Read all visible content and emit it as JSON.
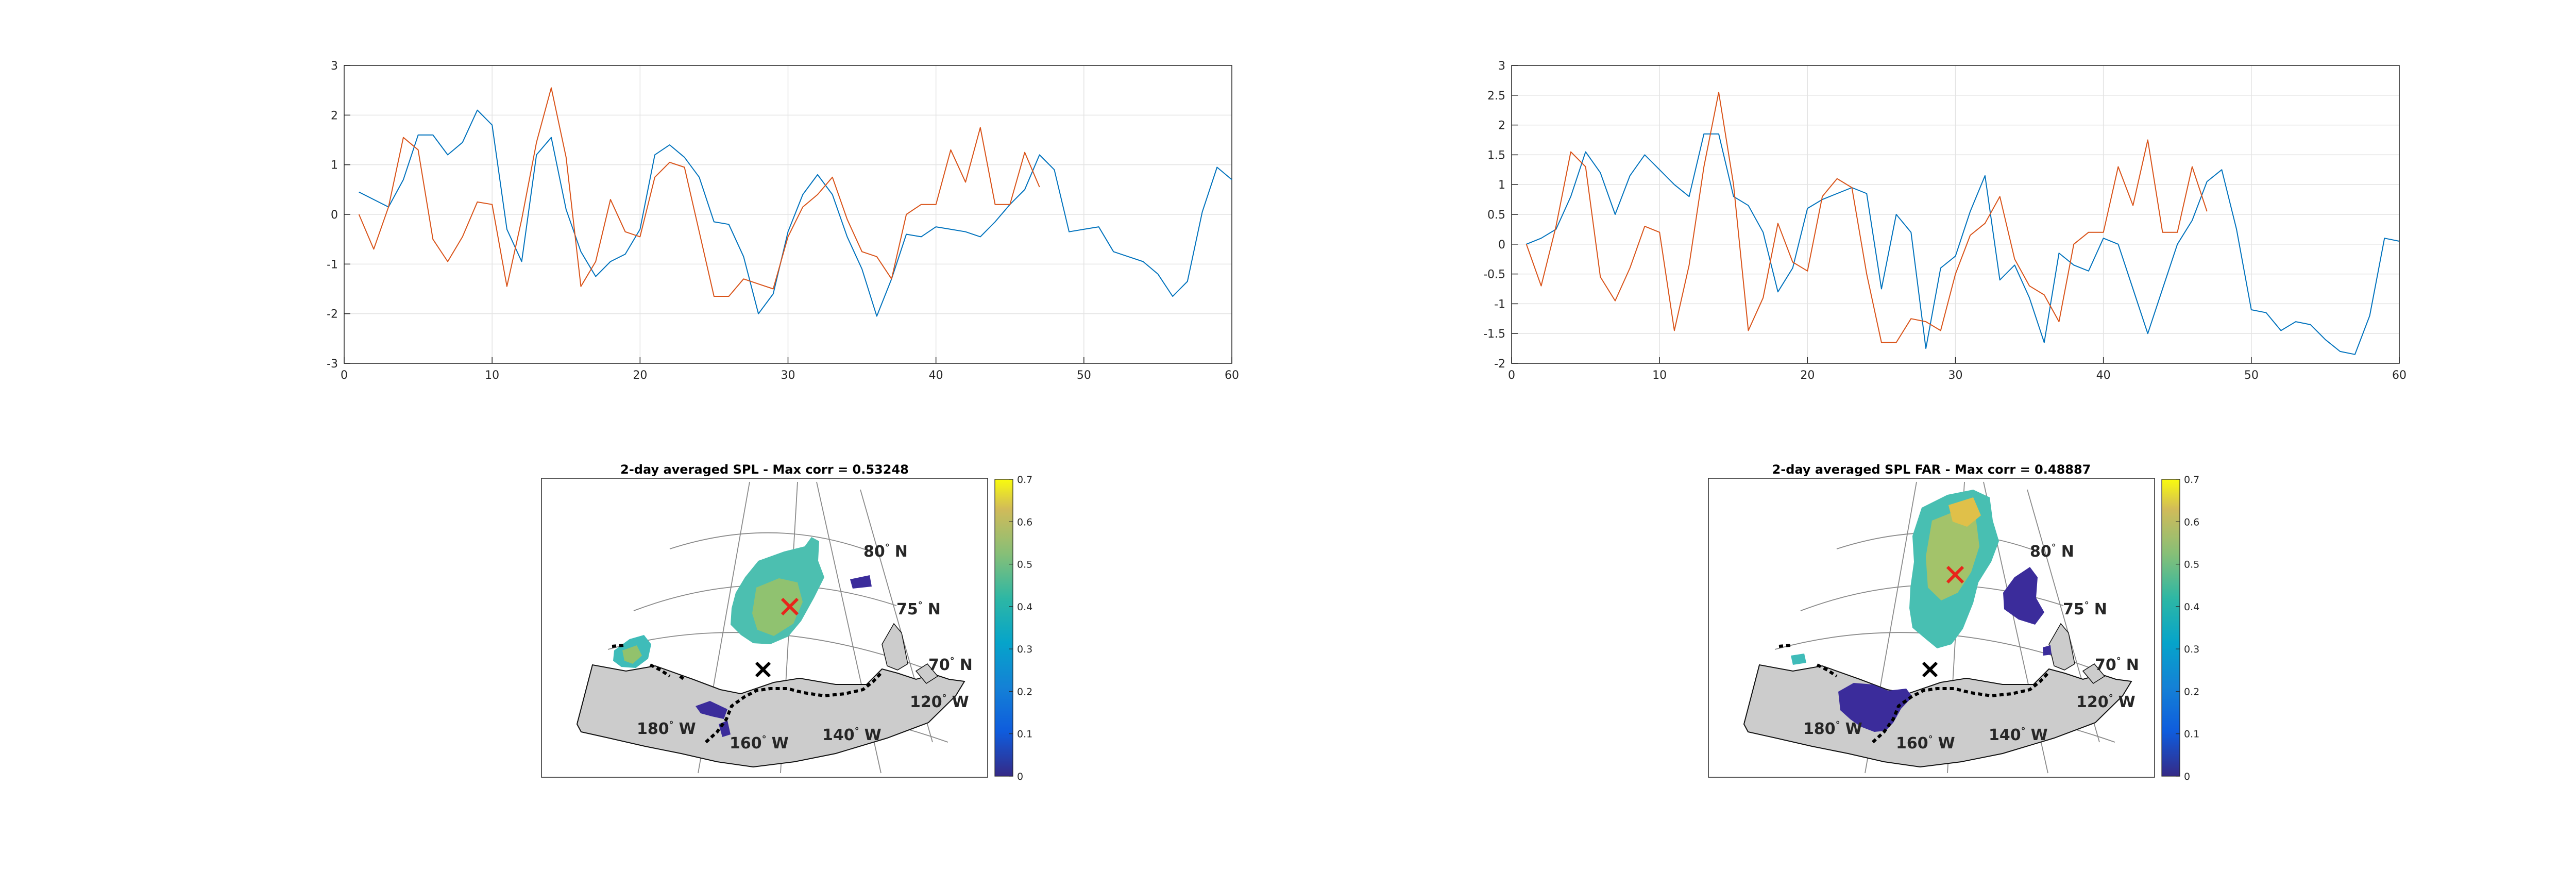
{
  "chart_data": [
    {
      "type": "line",
      "xlim": [
        0,
        60
      ],
      "ylim": [
        -3,
        3
      ],
      "xticks": [
        0,
        10,
        20,
        30,
        40,
        50,
        60
      ],
      "yticks": [
        -3,
        -2,
        -1,
        0,
        1,
        2,
        3
      ],
      "xtick_labels": [
        "0",
        "10",
        "20",
        "30",
        "40",
        "50",
        "60"
      ],
      "ytick_labels": [
        "-3",
        "-2",
        "-1",
        "0",
        "1",
        "2",
        "3"
      ],
      "grid": true,
      "series": [
        {
          "color": "#0072BD",
          "x": [
            1,
            2,
            3,
            4,
            5,
            6,
            7,
            8,
            9,
            10,
            11,
            12,
            13,
            14,
            15,
            16,
            17,
            18,
            19,
            20,
            21,
            22,
            23,
            24,
            25,
            26,
            27,
            28,
            29,
            30,
            31,
            32,
            33,
            34,
            35,
            36,
            37,
            38,
            39,
            40,
            41,
            42,
            43,
            44,
            45,
            46,
            47,
            48,
            49,
            50,
            51,
            52,
            53,
            54,
            55,
            56,
            57,
            58,
            59,
            60
          ],
          "y": [
            0.45,
            0.3,
            0.15,
            0.7,
            1.6,
            1.6,
            1.2,
            1.45,
            2.1,
            1.8,
            -0.3,
            -0.95,
            1.2,
            1.55,
            0.1,
            -0.75,
            -1.25,
            -0.95,
            -0.8,
            -0.3,
            1.2,
            1.4,
            1.15,
            0.75,
            -0.15,
            -0.2,
            -0.85,
            -2.0,
            -1.6,
            -0.35,
            0.4,
            0.8,
            0.4,
            -0.45,
            -1.1,
            -2.05,
            -1.3,
            -0.4,
            -0.45,
            -0.25,
            -0.3,
            -0.35,
            -0.45,
            -0.15,
            0.2,
            0.5,
            1.2,
            0.9,
            -0.35,
            -0.3,
            -0.25,
            -0.75,
            -0.85,
            -0.95,
            -1.2,
            -1.65,
            -1.35,
            0.05,
            0.95,
            0.7
          ]
        },
        {
          "color": "#D95319",
          "x": [
            1,
            2,
            3,
            4,
            5,
            6,
            7,
            8,
            9,
            10,
            11,
            12,
            13,
            14,
            15,
            16,
            17,
            18,
            19,
            20,
            21,
            22,
            23,
            24,
            25,
            26,
            27,
            28,
            29,
            30,
            31,
            32,
            33,
            34,
            35,
            36,
            37,
            38,
            39,
            40,
            41,
            42,
            43,
            44,
            45,
            46,
            47
          ],
          "y": [
            0.0,
            -0.7,
            0.15,
            1.55,
            1.3,
            -0.5,
            -0.95,
            -0.45,
            0.25,
            0.2,
            -1.45,
            -0.1,
            1.45,
            2.55,
            1.15,
            -1.45,
            -0.95,
            0.3,
            -0.35,
            -0.45,
            0.75,
            1.05,
            0.95,
            -0.35,
            -1.65,
            -1.65,
            -1.3,
            -1.4,
            -1.5,
            -0.45,
            0.15,
            0.4,
            0.75,
            -0.1,
            -0.75,
            -0.85,
            -1.3,
            0.0,
            0.2,
            0.2,
            1.3,
            0.65,
            1.75,
            0.2,
            0.2,
            1.25,
            0.55
          ]
        }
      ]
    },
    {
      "type": "line",
      "xlim": [
        0,
        60
      ],
      "ylim": [
        -2,
        3
      ],
      "xticks": [
        0,
        10,
        20,
        30,
        40,
        50,
        60
      ],
      "yticks": [
        -2,
        -1.5,
        -1,
        -0.5,
        0,
        0.5,
        1,
        1.5,
        2,
        2.5,
        3
      ],
      "xtick_labels": [
        "0",
        "10",
        "20",
        "30",
        "40",
        "50",
        "60"
      ],
      "ytick_labels": [
        "-2",
        "-1.5",
        "-1",
        "-0.5",
        "0",
        "0.5",
        "1",
        "1.5",
        "2",
        "2.5",
        "3"
      ],
      "grid": true,
      "series": [
        {
          "color": "#0072BD",
          "x": [
            1,
            2,
            3,
            4,
            5,
            6,
            7,
            8,
            9,
            10,
            11,
            12,
            13,
            14,
            15,
            16,
            17,
            18,
            19,
            20,
            21,
            22,
            23,
            24,
            25,
            26,
            27,
            28,
            29,
            30,
            31,
            32,
            33,
            34,
            35,
            36,
            37,
            38,
            39,
            40,
            41,
            42,
            43,
            44,
            45,
            46,
            47,
            48,
            49,
            50,
            51,
            52,
            53,
            54,
            55,
            56,
            57,
            58,
            59,
            60
          ],
          "y": [
            0.0,
            0.1,
            0.25,
            0.8,
            1.55,
            1.2,
            0.5,
            1.15,
            1.5,
            1.25,
            1.0,
            0.8,
            1.85,
            1.85,
            0.8,
            0.65,
            0.2,
            -0.8,
            -0.4,
            0.6,
            0.75,
            0.85,
            0.95,
            0.85,
            -0.75,
            0.5,
            0.2,
            -1.75,
            -0.4,
            -0.2,
            0.55,
            1.15,
            -0.6,
            -0.35,
            -0.9,
            -1.65,
            -0.15,
            -0.35,
            -0.45,
            0.1,
            0.0,
            -0.75,
            -1.5,
            -0.75,
            0.0,
            0.4,
            1.05,
            1.25,
            0.25,
            -1.1,
            -1.15,
            -1.45,
            -1.3,
            -1.35,
            -1.6,
            -1.8,
            -1.85,
            -1.2,
            0.1,
            0.05
          ]
        },
        {
          "color": "#D95319",
          "x": [
            1,
            2,
            3,
            4,
            5,
            6,
            7,
            8,
            9,
            10,
            11,
            12,
            13,
            14,
            15,
            16,
            17,
            18,
            19,
            20,
            21,
            22,
            23,
            24,
            25,
            26,
            27,
            28,
            29,
            30,
            31,
            32,
            33,
            34,
            35,
            36,
            37,
            38,
            39,
            40,
            41,
            42,
            43,
            44,
            45,
            46,
            47
          ],
          "y": [
            0.0,
            -0.7,
            0.3,
            1.55,
            1.3,
            -0.55,
            -0.95,
            -0.4,
            0.3,
            0.2,
            -1.45,
            -0.35,
            1.3,
            2.55,
            1.0,
            -1.45,
            -0.9,
            0.35,
            -0.3,
            -0.45,
            0.8,
            1.1,
            0.95,
            -0.5,
            -1.65,
            -1.65,
            -1.25,
            -1.3,
            -1.45,
            -0.5,
            0.15,
            0.35,
            0.8,
            -0.25,
            -0.7,
            -0.85,
            -1.3,
            0.0,
            0.2,
            0.2,
            1.3,
            0.65,
            1.75,
            0.2,
            0.2,
            1.3,
            0.55
          ]
        }
      ]
    },
    {
      "type": "heatmap",
      "title": "2-day averaged SPL - Max corr = 0.53248",
      "colorbar": {
        "min": 0,
        "max": 0.7,
        "ticks": [
          "0",
          "0.1",
          "0.2",
          "0.3",
          "0.4",
          "0.5",
          "0.6",
          "0.7"
        ],
        "colormap": "parula"
      },
      "latitude_labels": [
        {
          "deg": "80",
          "suffix": "N"
        },
        {
          "deg": "75",
          "suffix": "N"
        },
        {
          "deg": "70",
          "suffix": "N"
        }
      ],
      "longitude_labels": [
        {
          "deg": "120",
          "suffix": "W"
        },
        {
          "deg": "140",
          "suffix": "W"
        },
        {
          "deg": "160",
          "suffix": "W"
        },
        {
          "deg": "180",
          "suffix": "W"
        }
      ],
      "max_corr": 0.53248
    },
    {
      "type": "heatmap",
      "title": "2-day averaged SPL FAR - Max corr = 0.48887",
      "colorbar": {
        "min": 0,
        "max": 0.7,
        "ticks": [
          "0",
          "0.1",
          "0.2",
          "0.3",
          "0.4",
          "0.5",
          "0.6",
          "0.7"
        ],
        "colormap": "parula"
      },
      "latitude_labels": [
        {
          "deg": "80",
          "suffix": "N"
        },
        {
          "deg": "75",
          "suffix": "N"
        },
        {
          "deg": "70",
          "suffix": "N"
        }
      ],
      "longitude_labels": [
        {
          "deg": "120",
          "suffix": "W"
        },
        {
          "deg": "140",
          "suffix": "W"
        },
        {
          "deg": "160",
          "suffix": "W"
        },
        {
          "deg": "180",
          "suffix": "W"
        }
      ],
      "max_corr": 0.48887
    }
  ],
  "colors": {
    "series_blue": "#0072BD",
    "series_orange": "#D95319",
    "land": "#cccccc",
    "marker_red": "#e8251b",
    "marker_black": "#000000"
  }
}
